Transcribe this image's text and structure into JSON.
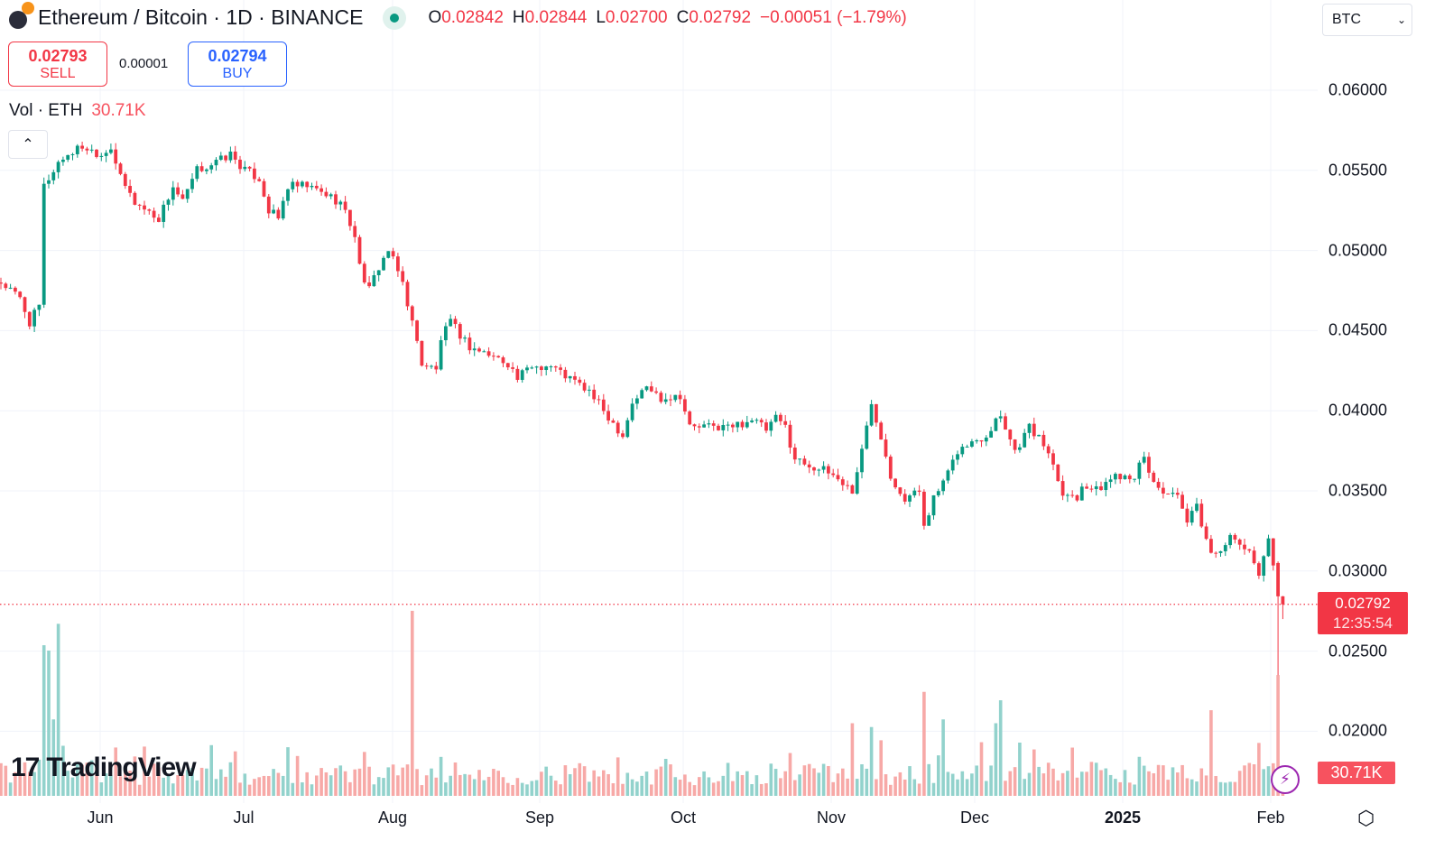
{
  "header": {
    "title": "Ethereum / Bitcoin · 1D · BINANCE",
    "ohlc": {
      "o_label": "O",
      "o": "0.02842",
      "h_label": "H",
      "h": "0.02844",
      "l_label": "L",
      "l": "0.02700",
      "c_label": "C",
      "c": "0.02792",
      "change": "−0.00051 (−1.79%)"
    }
  },
  "trade": {
    "sell_price": "0.02793",
    "sell_label": "SELL",
    "spread": "0.00001",
    "buy_price": "0.02794",
    "buy_label": "BUY"
  },
  "volume_legend": {
    "label": "Vol · ETH",
    "value": "30.71K"
  },
  "symbol_select": {
    "value": "BTC"
  },
  "price_axis": {
    "ticks": [
      "0.06000",
      "0.05500",
      "0.05000",
      "0.04500",
      "0.04000",
      "0.03500",
      "0.03000",
      "0.02500",
      "0.02000"
    ],
    "last_price": "0.02792",
    "countdown": "12:35:54",
    "last_volume": "30.71K"
  },
  "time_axis": {
    "ticks": [
      "Jun",
      "Jul",
      "Aug",
      "Sep",
      "Oct",
      "Nov",
      "Dec",
      "2025",
      "Feb"
    ]
  },
  "branding": {
    "logo": "TradingView"
  },
  "colors": {
    "up": "#089981",
    "down": "#f23645",
    "up_volume": "#92d2cc",
    "down_volume": "#f7a9a7"
  },
  "chart_data": {
    "type": "candlestick",
    "interval": "1D",
    "ylim": [
      0.0175,
      0.062
    ],
    "x_range": [
      "2024-05-11",
      "2025-02-03"
    ],
    "grid": true,
    "approx_closes": [
      [
        "2024-05-11",
        0.048
      ],
      [
        "2024-05-15",
        0.047
      ],
      [
        "2024-05-17",
        0.0455
      ],
      [
        "2024-05-19",
        0.0465
      ],
      [
        "2024-05-20",
        0.054
      ],
      [
        "2024-05-21",
        0.0545
      ],
      [
        "2024-05-23",
        0.0555
      ],
      [
        "2024-05-25",
        0.056
      ],
      [
        "2024-05-28",
        0.0565
      ],
      [
        "2024-06-01",
        0.056
      ],
      [
        "2024-06-03",
        0.0565
      ],
      [
        "2024-06-05",
        0.0545
      ],
      [
        "2024-06-08",
        0.053
      ],
      [
        "2024-06-13",
        0.052
      ],
      [
        "2024-06-16",
        0.054
      ],
      [
        "2024-06-18",
        0.053
      ],
      [
        "2024-06-21",
        0.055
      ],
      [
        "2024-06-25",
        0.0555
      ],
      [
        "2024-06-28",
        0.056
      ],
      [
        "2024-07-01",
        0.055
      ],
      [
        "2024-07-04",
        0.0545
      ],
      [
        "2024-07-06",
        0.0525
      ],
      [
        "2024-07-08",
        0.052
      ],
      [
        "2024-07-10",
        0.054
      ],
      [
        "2024-07-14",
        0.054
      ],
      [
        "2024-07-18",
        0.0535
      ],
      [
        "2024-07-21",
        0.053
      ],
      [
        "2024-07-24",
        0.051
      ],
      [
        "2024-07-25",
        0.049
      ],
      [
        "2024-07-27",
        0.0475
      ],
      [
        "2024-07-29",
        0.049
      ],
      [
        "2024-07-31",
        0.05
      ],
      [
        "2024-08-03",
        0.048
      ],
      [
        "2024-08-05",
        0.0455
      ],
      [
        "2024-08-07",
        0.043
      ],
      [
        "2024-08-10",
        0.0425
      ],
      [
        "2024-08-11",
        0.0445
      ],
      [
        "2024-08-13",
        0.0455
      ],
      [
        "2024-08-17",
        0.044
      ],
      [
        "2024-08-21",
        0.0435
      ],
      [
        "2024-08-25",
        0.043
      ],
      [
        "2024-08-27",
        0.042
      ],
      [
        "2024-08-30",
        0.0428
      ],
      [
        "2024-09-03",
        0.0428
      ],
      [
        "2024-09-07",
        0.042
      ],
      [
        "2024-09-11",
        0.0412
      ],
      [
        "2024-09-14",
        0.04
      ],
      [
        "2024-09-18",
        0.0385
      ],
      [
        "2024-09-20",
        0.0405
      ],
      [
        "2024-09-23",
        0.0415
      ],
      [
        "2024-09-26",
        0.0408
      ],
      [
        "2024-09-30",
        0.041
      ],
      [
        "2024-10-02",
        0.039
      ],
      [
        "2024-10-07",
        0.039
      ],
      [
        "2024-10-11",
        0.039
      ],
      [
        "2024-10-15",
        0.0395
      ],
      [
        "2024-10-18",
        0.0388
      ],
      [
        "2024-10-20",
        0.0395
      ],
      [
        "2024-10-22",
        0.039
      ],
      [
        "2024-10-24",
        0.037
      ],
      [
        "2024-10-28",
        0.0365
      ],
      [
        "2024-11-01",
        0.036
      ],
      [
        "2024-11-05",
        0.035
      ],
      [
        "2024-11-07",
        0.0375
      ],
      [
        "2024-11-09",
        0.0405
      ],
      [
        "2024-11-11",
        0.0385
      ],
      [
        "2024-11-13",
        0.036
      ],
      [
        "2024-11-16",
        0.0345
      ],
      [
        "2024-11-19",
        0.035
      ],
      [
        "2024-11-20",
        0.033
      ],
      [
        "2024-11-22",
        0.0345
      ],
      [
        "2024-11-25",
        0.036
      ],
      [
        "2024-11-27",
        0.0375
      ],
      [
        "2024-11-30",
        0.038
      ],
      [
        "2024-12-03",
        0.0385
      ],
      [
        "2024-12-05",
        0.0395
      ],
      [
        "2024-12-06",
        0.0398
      ],
      [
        "2024-12-09",
        0.0375
      ],
      [
        "2024-12-12",
        0.039
      ],
      [
        "2024-12-16",
        0.0375
      ],
      [
        "2024-12-19",
        0.035
      ],
      [
        "2024-12-22",
        0.0345
      ],
      [
        "2024-12-23",
        0.0355
      ],
      [
        "2024-12-26",
        0.035
      ],
      [
        "2024-12-30",
        0.036
      ],
      [
        "2025-01-03",
        0.036
      ],
      [
        "2025-01-05",
        0.037
      ],
      [
        "2025-01-07",
        0.0355
      ],
      [
        "2025-01-09",
        0.035
      ],
      [
        "2025-01-12",
        0.0345
      ],
      [
        "2025-01-14",
        0.033
      ],
      [
        "2025-01-16",
        0.034
      ],
      [
        "2025-01-19",
        0.031
      ],
      [
        "2025-01-21",
        0.0315
      ],
      [
        "2025-01-23",
        0.032
      ],
      [
        "2025-01-26",
        0.0315
      ],
      [
        "2025-01-29",
        0.03
      ],
      [
        "2025-01-31",
        0.032
      ],
      [
        "2025-02-01",
        0.0305
      ]
    ],
    "last_candles": [
      {
        "date": "2025-02-02",
        "o": 0.0305,
        "h": 0.0306,
        "l": 0.0235,
        "c": 0.02842
      },
      {
        "date": "2025-02-03",
        "o": 0.02842,
        "h": 0.02844,
        "l": 0.027,
        "c": 0.02792
      }
    ],
    "volume_unit": "K ETH",
    "volume_spikes": [
      [
        "2024-05-20",
        197
      ],
      [
        "2024-05-21",
        190
      ],
      [
        "2024-05-22",
        100
      ],
      [
        "2024-05-23",
        225
      ],
      [
        "2024-08-05",
        242
      ],
      [
        "2024-11-05",
        95
      ],
      [
        "2024-11-09",
        90
      ],
      [
        "2024-11-20",
        136
      ],
      [
        "2024-11-24",
        100
      ],
      [
        "2024-12-06",
        125
      ],
      [
        "2024-12-05",
        95
      ],
      [
        "2025-01-19",
        112
      ],
      [
        "2025-02-02",
        158
      ],
      [
        "2025-02-03",
        30.71
      ]
    ]
  }
}
